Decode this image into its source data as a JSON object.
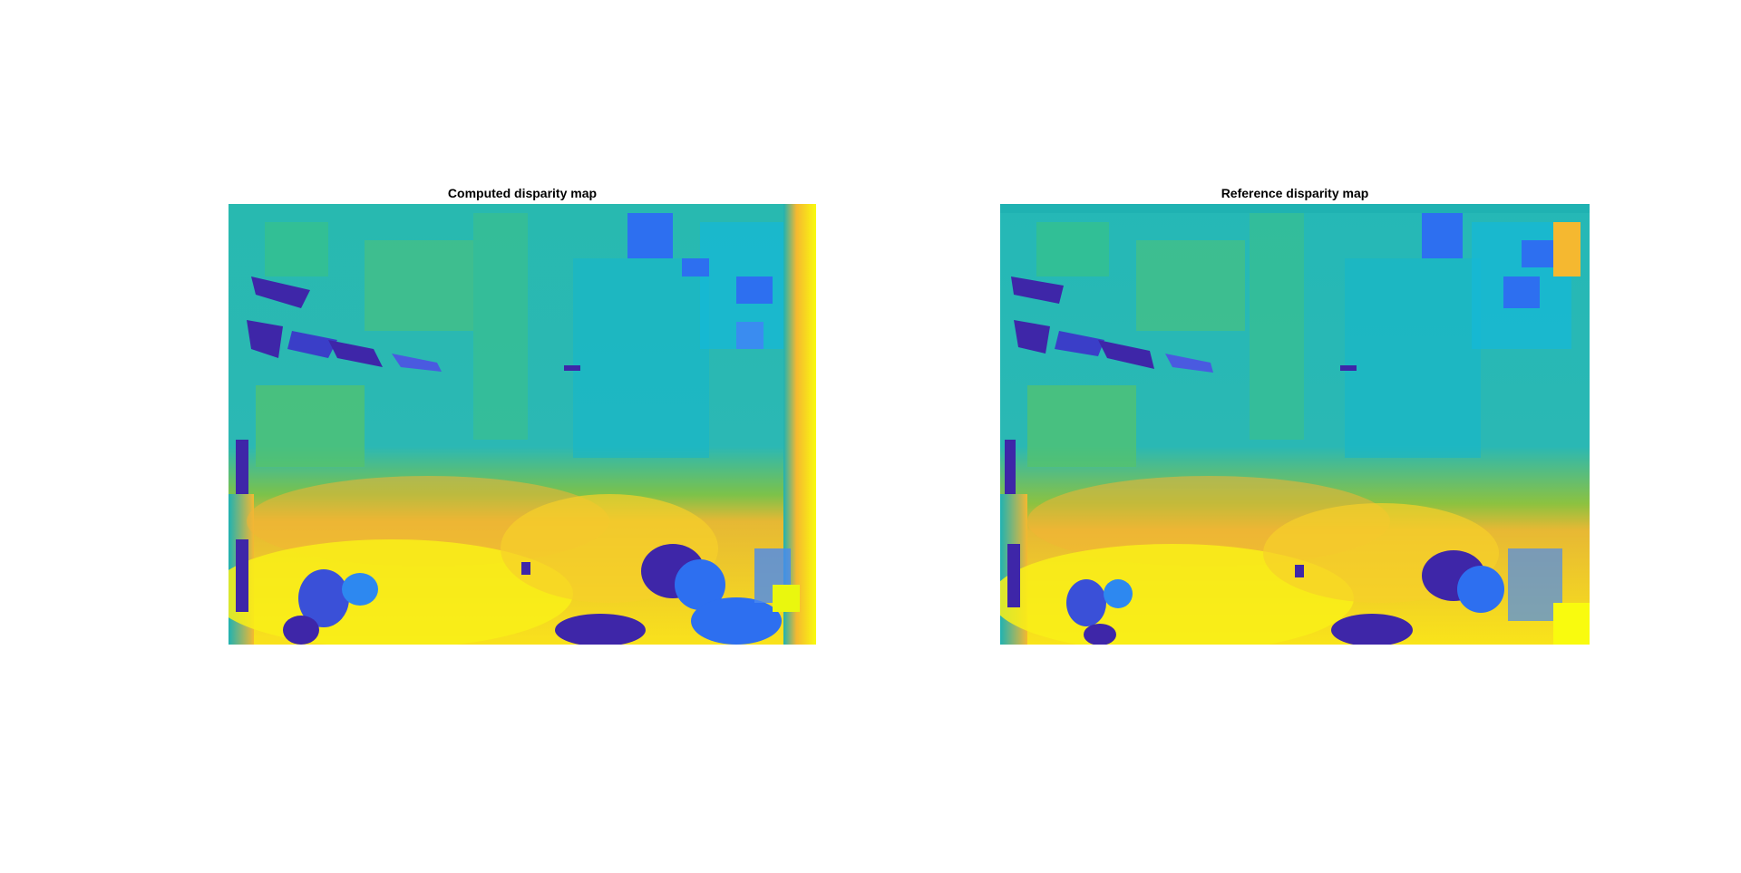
{
  "figure": {
    "panels": [
      {
        "title": "Computed disparity map",
        "colormap": "parula"
      },
      {
        "title": "Reference disparity map",
        "colormap": "parula"
      }
    ]
  },
  "colors": {
    "dark_blue": "#3e26a8",
    "blue": "#2d6ff0",
    "light_blue": "#13b8d6",
    "teal": "#1fb2b2",
    "cyan_green": "#35c08e",
    "green": "#62c45c",
    "yellow_green": "#a8c232",
    "orange": "#f5b830",
    "gold": "#f7d02a",
    "yellow": "#f9fb0e"
  }
}
